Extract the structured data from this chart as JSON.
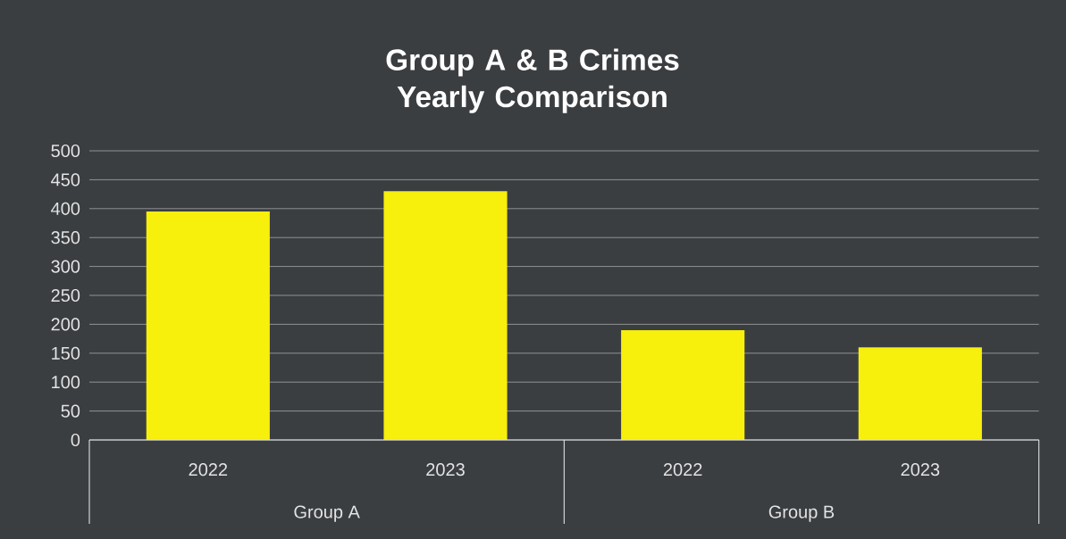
{
  "chart_data": {
    "type": "bar",
    "title": "Group A & B Crimes Yearly Comparison",
    "categories": [
      "2022",
      "2023",
      "2022",
      "2023"
    ],
    "values": [
      395,
      430,
      190,
      160
    ],
    "color": "#f7ef0c",
    "ylim": [
      0,
      500
    ],
    "yticks": [
      0,
      50,
      100,
      150,
      200,
      250,
      300,
      350,
      400,
      450,
      500
    ],
    "grid": "y",
    "annotations": [
      "Group A",
      "Group B"
    ]
  }
}
